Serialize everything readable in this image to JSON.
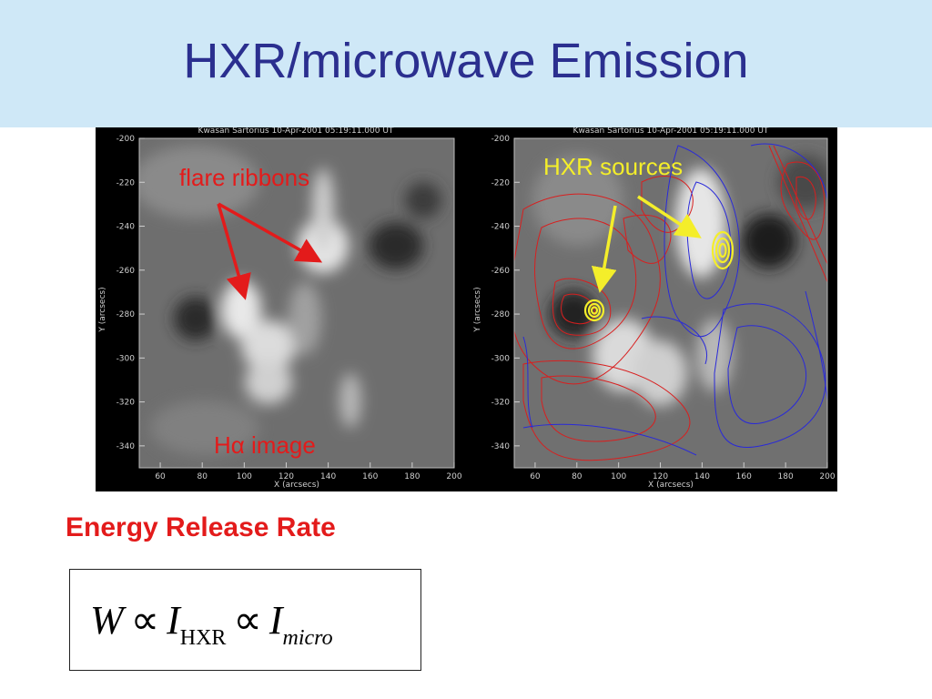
{
  "slide": {
    "title": "HXR/microwave Emission",
    "energy_label": "Energy Release Rate",
    "equation": {
      "w": "W",
      "prop": "∝",
      "i1": "I",
      "sub1": "HXR",
      "i2": "I",
      "sub2": "micro"
    }
  },
  "left_panel": {
    "header": "Kwasan Sartorius 10-Apr-2001 05:19:11.000 UT",
    "annotation_ribbons": "flare ribbons",
    "annotation_image": "Hα image",
    "ylabel": "Y (arcsecs)",
    "xlabel": "X (arcsecs)",
    "yticks": [
      "-200",
      "-220",
      "-240",
      "-260",
      "-280",
      "-300",
      "-320",
      "-340"
    ],
    "xticks": [
      "60",
      "80",
      "100",
      "120",
      "140",
      "160",
      "180",
      "200"
    ]
  },
  "right_panel": {
    "header": "Kwasan Sartorius 10-Apr-2001 05:19:11.000 UT",
    "annotation_hxr": "HXR sources",
    "ylabel": "Y (arcsecs)",
    "xlabel": "X (arcsecs)",
    "yticks": [
      "-200",
      "-220",
      "-240",
      "-260",
      "-280",
      "-300",
      "-320",
      "-340"
    ],
    "xticks": [
      "60",
      "80",
      "100",
      "120",
      "140",
      "160",
      "180",
      "200"
    ]
  },
  "colors": {
    "title": "#2b2f8f",
    "title_bg": "#cfe8f7",
    "accent_red": "#e31b1b",
    "hxr_yellow": "#f4ee2a",
    "contour_red": "#d81f1f",
    "contour_blue": "#2a2ad8"
  }
}
